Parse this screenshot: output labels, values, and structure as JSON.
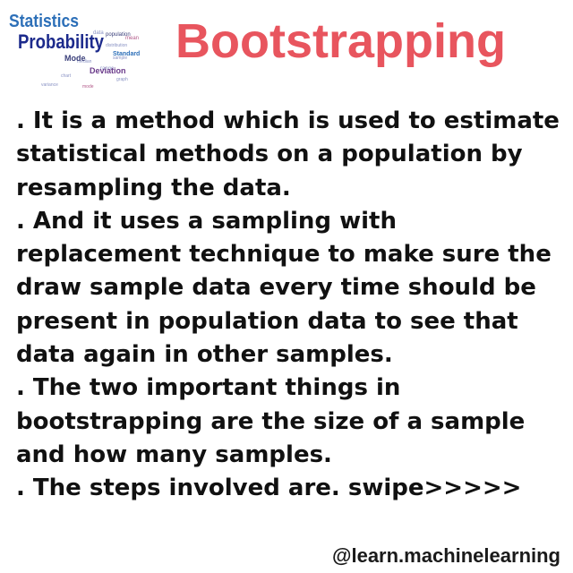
{
  "logo": {
    "word_statistics": "Statistics",
    "word_probability": "Probability",
    "word_mode": "Mode",
    "word_deviation": "Deviation",
    "word_standard": "Standard",
    "word_population": "population",
    "accent": "#1c2a8c"
  },
  "title": "Bootstrapping",
  "title_color": "#e8555e",
  "paragraphs": [
    ". It is a method which is used to estimate statistical methods on a population by resampling the data.",
    ". And it uses a sampling with replacement technique to make sure the draw sample data every time should be present in population data to see that data again in other samples.",
    ". The two important things in bootstrapping are the size of a sample and how many samples.",
    ". The steps involved are.  swipe>>>>>"
  ],
  "handle": "@learn.machinelearning"
}
